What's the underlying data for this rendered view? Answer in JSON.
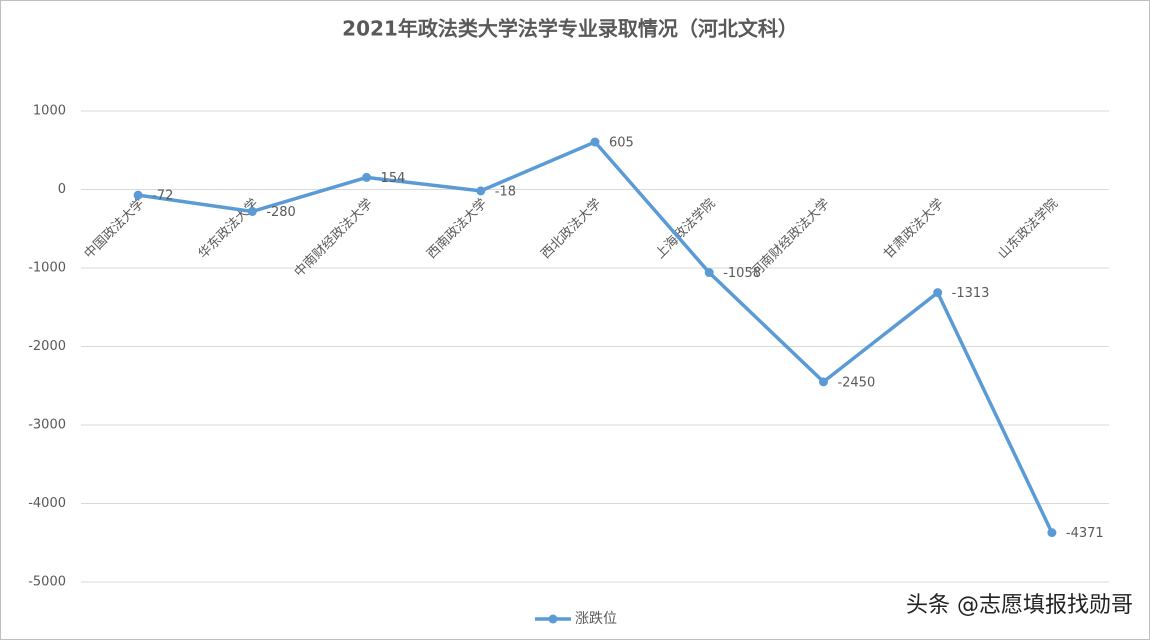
{
  "chart_data": {
    "type": "line",
    "title": "2021年政法类大学法学专业录取情况（河北文科）",
    "categories": [
      "中国政法大学",
      "华东政法大学",
      "中南财经政法大学",
      "西南政法大学",
      "西北政法大学",
      "上海政法学院",
      "河南财经政法大学",
      "甘肃政法大学",
      "山东政法学院"
    ],
    "series": [
      {
        "name": "涨跌位",
        "color": "#5b9bd5",
        "values": [
          -72,
          -280,
          154,
          -18,
          605,
          -1058,
          -2450,
          -1313,
          -4371
        ]
      }
    ],
    "ylim": [
      -5000,
      1000
    ],
    "yticks": [
      -5000,
      -4000,
      -3000,
      -2000,
      -1000,
      0,
      1000
    ],
    "grid": true,
    "legend": "bottom",
    "annotation": "头条 @志愿填报找勋哥"
  }
}
